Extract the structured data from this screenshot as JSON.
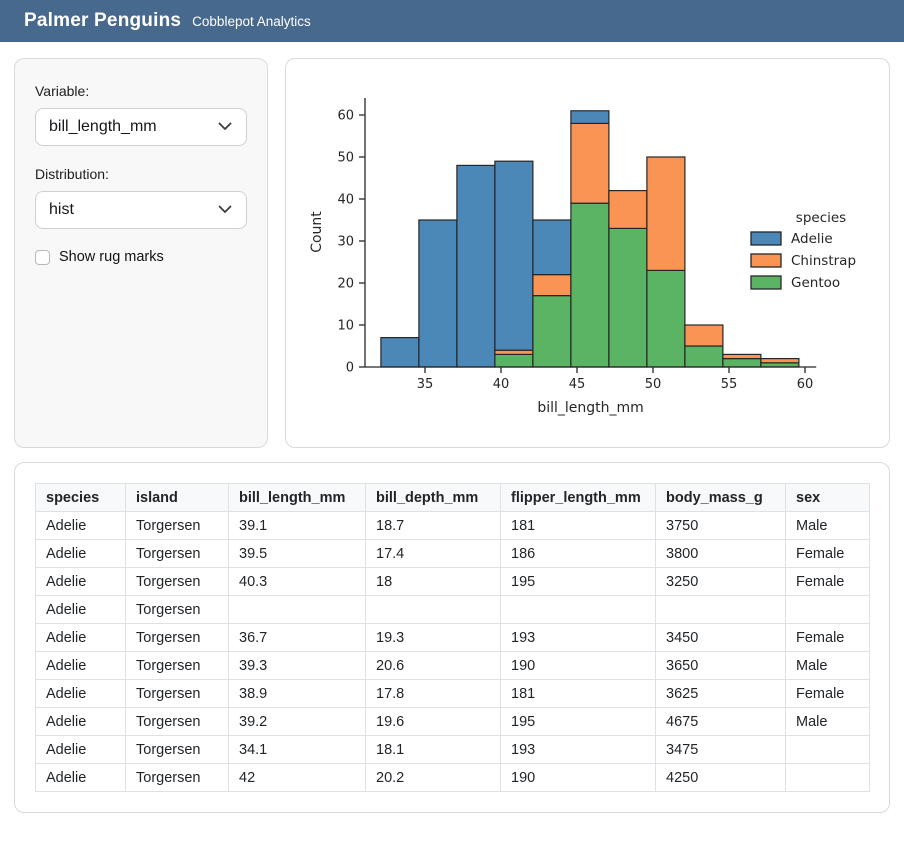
{
  "header": {
    "title": "Palmer Penguins",
    "subtitle": "Cobblepot Analytics",
    "bg_color": "#47698e"
  },
  "sidebar": {
    "variable_label": "Variable:",
    "variable_value": "bill_length_mm",
    "distribution_label": "Distribution:",
    "distribution_value": "hist",
    "rug_label": "Show rug marks",
    "rug_checked": false
  },
  "chart_data": {
    "type": "bar",
    "subtype": "stacked-histogram",
    "title": "",
    "xlabel": "bill_length_mm",
    "ylabel": "Count",
    "bin_left_edges": [
      32.1,
      34.6,
      37.1,
      39.6,
      42.1,
      44.6,
      47.1,
      49.6,
      52.1,
      54.6,
      57.1
    ],
    "binwidth": 2.5,
    "series": [
      {
        "name": "Adelie",
        "color": "#4b88b7",
        "values": [
          7,
          35,
          48,
          45,
          13,
          3,
          0,
          0,
          0,
          0,
          0
        ]
      },
      {
        "name": "Chinstrap",
        "color": "#fa9455",
        "values": [
          0,
          0,
          0,
          1,
          5,
          19,
          9,
          27,
          5,
          1,
          1
        ]
      },
      {
        "name": "Gentoo",
        "color": "#5ab464",
        "values": [
          0,
          0,
          0,
          3,
          17,
          39,
          33,
          23,
          5,
          2,
          1
        ]
      }
    ],
    "stack_order": [
      "Gentoo",
      "Chinstrap",
      "Adelie"
    ],
    "bin_totals": [
      7,
      35,
      48,
      49,
      35,
      61,
      42,
      50,
      10,
      3,
      2
    ],
    "xticks": [
      35,
      40,
      45,
      50,
      55,
      60
    ],
    "yticks": [
      0,
      10,
      20,
      30,
      40,
      50,
      60
    ],
    "xlim": [
      30.7,
      61.0
    ],
    "ylim": [
      0,
      64
    ],
    "grid": false,
    "legend": {
      "title": "species",
      "position": "right",
      "entries": [
        "Adelie",
        "Chinstrap",
        "Gentoo"
      ]
    },
    "edge_color": "#262626",
    "text_color": "#262626"
  },
  "table": {
    "columns": [
      "species",
      "island",
      "bill_length_mm",
      "bill_depth_mm",
      "flipper_length_mm",
      "body_mass_g",
      "sex"
    ],
    "rows": [
      [
        "Adelie",
        "Torgersen",
        "39.1",
        "18.7",
        "181",
        "3750",
        "Male"
      ],
      [
        "Adelie",
        "Torgersen",
        "39.5",
        "17.4",
        "186",
        "3800",
        "Female"
      ],
      [
        "Adelie",
        "Torgersen",
        "40.3",
        "18",
        "195",
        "3250",
        "Female"
      ],
      [
        "Adelie",
        "Torgersen",
        "",
        "",
        "",
        "",
        ""
      ],
      [
        "Adelie",
        "Torgersen",
        "36.7",
        "19.3",
        "193",
        "3450",
        "Female"
      ],
      [
        "Adelie",
        "Torgersen",
        "39.3",
        "20.6",
        "190",
        "3650",
        "Male"
      ],
      [
        "Adelie",
        "Torgersen",
        "38.9",
        "17.8",
        "181",
        "3625",
        "Female"
      ],
      [
        "Adelie",
        "Torgersen",
        "39.2",
        "19.6",
        "195",
        "4675",
        "Male"
      ],
      [
        "Adelie",
        "Torgersen",
        "34.1",
        "18.1",
        "193",
        "3475",
        ""
      ],
      [
        "Adelie",
        "Torgersen",
        "42",
        "20.2",
        "190",
        "4250",
        ""
      ]
    ]
  }
}
